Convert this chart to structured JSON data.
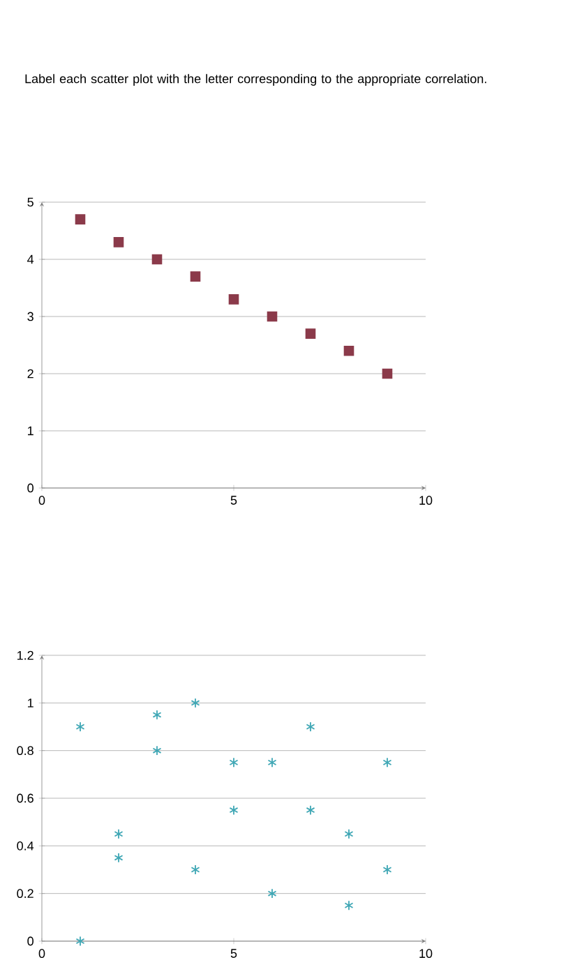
{
  "chart_data": [
    {
      "type": "scatter",
      "title": "Label each scatter plot with the letter corresponding to the appropriate correlation.",
      "x": [
        1,
        2,
        3,
        4,
        5,
        6,
        7,
        8,
        9
      ],
      "series": [
        {
          "color": "#8b3a4a",
          "values": [
            4.7,
            4.3,
            4.0,
            3.7,
            3.3,
            3.0,
            2.7,
            2.4,
            2.0
          ]
        }
      ],
      "marker": "square",
      "xlim": [
        0,
        10
      ],
      "ylim": [
        0,
        5
      ],
      "xticks": [
        0,
        5,
        10
      ],
      "yticks": [
        0,
        1,
        2,
        3,
        4,
        5
      ],
      "grid": "y"
    },
    {
      "type": "scatter",
      "x": [
        1,
        1,
        2,
        2,
        3,
        3,
        4,
        4,
        5,
        5,
        6,
        6,
        7,
        7,
        8,
        8,
        9,
        9
      ],
      "series": [
        {
          "color": "#3fa7b5",
          "values": [
            0,
            0.9,
            0.35,
            0.45,
            0.8,
            0.95,
            1.0,
            0.3,
            0.55,
            0.75,
            0.75,
            0.2,
            0.9,
            0.55,
            0.45,
            0.15,
            0.3,
            0.75
          ]
        }
      ],
      "marker": "cross",
      "xlim": [
        0,
        10
      ],
      "ylim": [
        0,
        1.2
      ],
      "xticks": [
        0,
        5,
        10
      ],
      "yticks": [
        0,
        0.2,
        0.4,
        0.6,
        0.8,
        1,
        1.2
      ],
      "grid": "y"
    }
  ]
}
